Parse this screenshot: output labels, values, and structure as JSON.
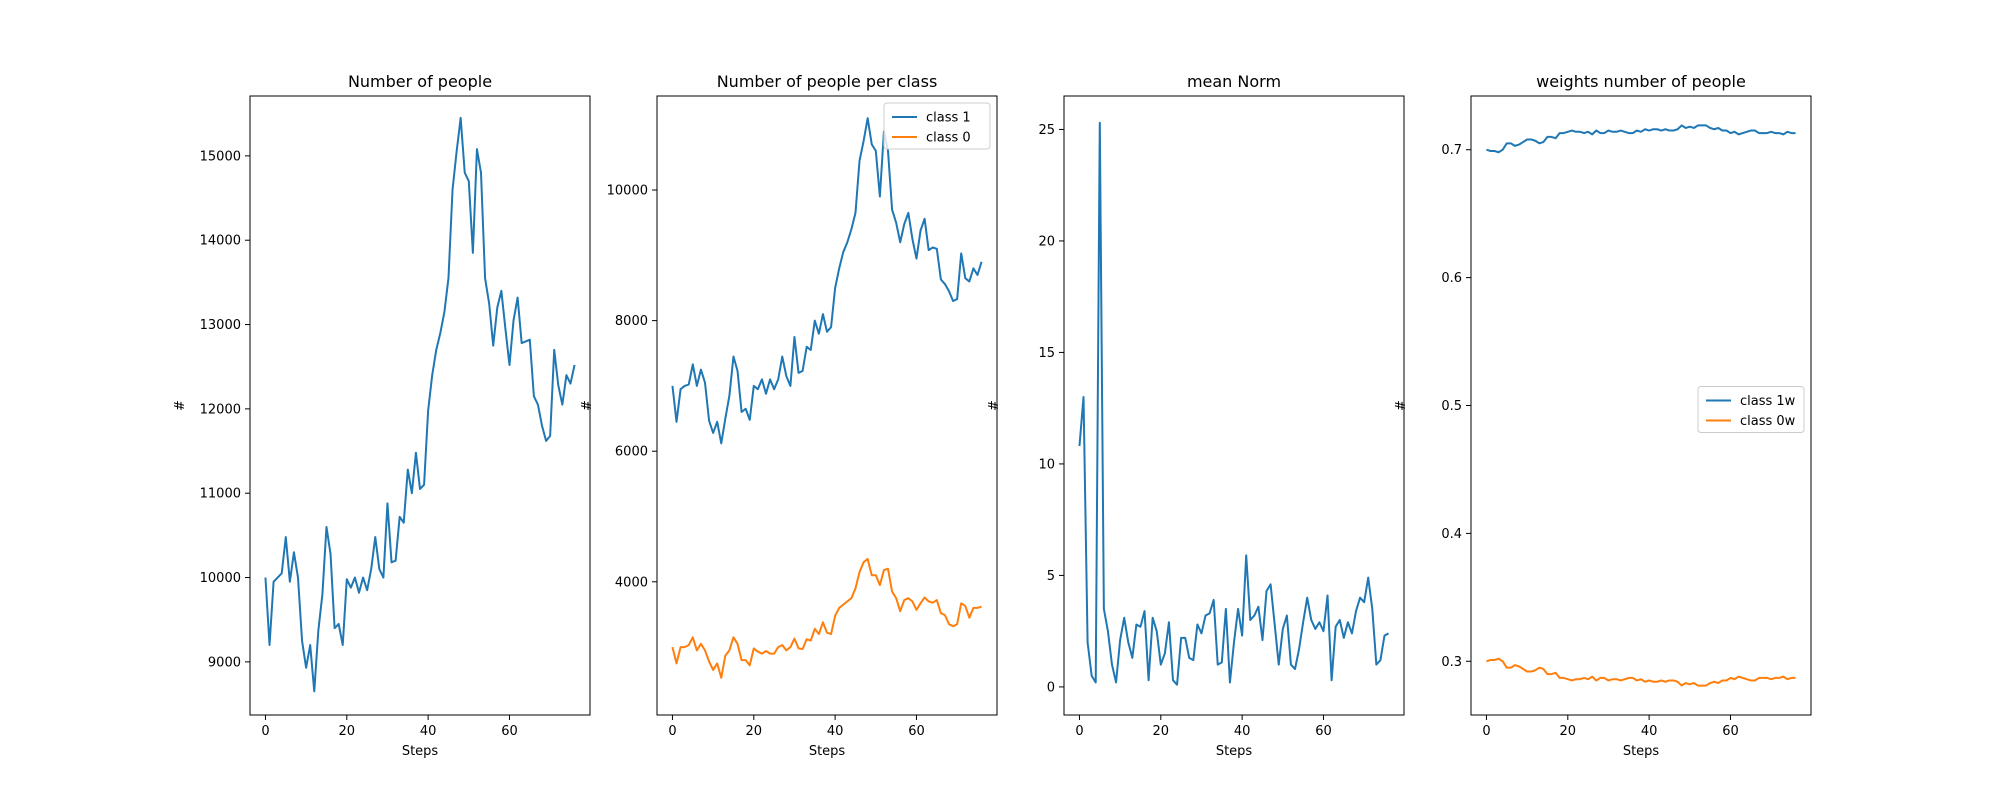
{
  "colors": {
    "series_0": "#1f77b4",
    "series_1": "#ff7f0e",
    "frame": "#000000"
  },
  "chart_data": [
    {
      "type": "line",
      "title": "Number of people",
      "xlabel": "Steps",
      "ylabel": "#",
      "xlim": [
        -3.8,
        79.8
      ],
      "ylim": [
        8370,
        15710
      ],
      "xticks": [
        0,
        20,
        40,
        60
      ],
      "yticks": [
        9000,
        10000,
        11000,
        12000,
        13000,
        14000,
        15000
      ],
      "legend": null,
      "series": [
        {
          "name": "",
          "color": "#1f77b4",
          "x": [
            0,
            1,
            2,
            3,
            4,
            5,
            6,
            7,
            8,
            9,
            10,
            11,
            12,
            13,
            14,
            15,
            16,
            17,
            18,
            19,
            20,
            21,
            22,
            23,
            24,
            25,
            26,
            27,
            28,
            29,
            30,
            31,
            32,
            33,
            34,
            35,
            36,
            37,
            38,
            39,
            40,
            41,
            42,
            43,
            44,
            45,
            46,
            47,
            48,
            49,
            50,
            51,
            52,
            53,
            54,
            55,
            56,
            57,
            58,
            59,
            60,
            61,
            62,
            63,
            64,
            65,
            66,
            67,
            68,
            69,
            70,
            71,
            72,
            73,
            74,
            75,
            76
          ],
          "values": [
            10000,
            9200,
            9950,
            10000,
            10050,
            10480,
            9950,
            10300,
            10000,
            9250,
            8930,
            9200,
            8650,
            9370,
            9800,
            10600,
            10280,
            9400,
            9450,
            9200,
            9980,
            9880,
            10000,
            9820,
            10000,
            9850,
            10100,
            10480,
            10100,
            10000,
            10880,
            10180,
            10200,
            10720,
            10650,
            11280,
            11000,
            11480,
            11050,
            11100,
            11980,
            12400,
            12700,
            12900,
            13150,
            13550,
            14600,
            15050,
            15450,
            14800,
            14700,
            13850,
            15080,
            14800,
            13550,
            13250,
            12750,
            13200,
            13400,
            12950,
            12520,
            13050,
            13320,
            12780,
            12800,
            12820,
            12150,
            12050,
            11800,
            11620,
            11680,
            12700,
            12280,
            12050,
            12400,
            12300,
            12520
          ]
        }
      ]
    },
    {
      "type": "line",
      "title": "Number of people per class",
      "xlabel": "Steps",
      "ylabel": "#",
      "xlim": [
        -3.8,
        79.8
      ],
      "ylim": [
        1960,
        11440
      ],
      "xticks": [
        0,
        20,
        40,
        60
      ],
      "yticks": [
        4000,
        6000,
        8000,
        10000
      ],
      "legend": "upper right",
      "series": [
        {
          "name": "class 1",
          "color": "#1f77b4",
          "x": [
            0,
            1,
            2,
            3,
            4,
            5,
            6,
            7,
            8,
            9,
            10,
            11,
            12,
            13,
            14,
            15,
            16,
            17,
            18,
            19,
            20,
            21,
            22,
            23,
            24,
            25,
            26,
            27,
            28,
            29,
            30,
            31,
            32,
            33,
            34,
            35,
            36,
            37,
            38,
            39,
            40,
            41,
            42,
            43,
            44,
            45,
            46,
            47,
            48,
            49,
            50,
            51,
            52,
            53,
            54,
            55,
            56,
            57,
            58,
            59,
            60,
            61,
            62,
            63,
            64,
            65,
            66,
            67,
            68,
            69,
            70,
            71,
            72,
            73,
            74,
            75,
            76
          ],
          "values": [
            7000,
            6450,
            6950,
            7000,
            7020,
            7330,
            7000,
            7250,
            7050,
            6470,
            6280,
            6450,
            6120,
            6500,
            6850,
            7450,
            7230,
            6600,
            6650,
            6480,
            7000,
            6950,
            7100,
            6880,
            7100,
            6950,
            7100,
            7450,
            7150,
            7000,
            7750,
            7200,
            7230,
            7600,
            7550,
            8000,
            7800,
            8100,
            7830,
            7900,
            8500,
            8800,
            9050,
            9200,
            9400,
            9650,
            10450,
            10750,
            11100,
            10700,
            10600,
            9900,
            10900,
            10600,
            9700,
            9500,
            9200,
            9480,
            9650,
            9250,
            8950,
            9380,
            9560,
            9080,
            9120,
            9100,
            8630,
            8560,
            8450,
            8300,
            8330,
            9030,
            8650,
            8600,
            8800,
            8700,
            8900
          ]
        },
        {
          "name": "class 0",
          "color": "#ff7f0e",
          "x": [
            0,
            1,
            2,
            3,
            4,
            5,
            6,
            7,
            8,
            9,
            10,
            11,
            12,
            13,
            14,
            15,
            16,
            17,
            18,
            19,
            20,
            21,
            22,
            23,
            24,
            25,
            26,
            27,
            28,
            29,
            30,
            31,
            32,
            33,
            34,
            35,
            36,
            37,
            38,
            39,
            40,
            41,
            42,
            43,
            44,
            45,
            46,
            47,
            48,
            49,
            50,
            51,
            52,
            53,
            54,
            55,
            56,
            57,
            58,
            59,
            60,
            61,
            62,
            63,
            64,
            65,
            66,
            67,
            68,
            69,
            70,
            71,
            72,
            73,
            74,
            75,
            76
          ],
          "values": [
            3000,
            2750,
            3000,
            3000,
            3030,
            3150,
            2950,
            3050,
            2950,
            2780,
            2650,
            2750,
            2530,
            2870,
            2950,
            3150,
            3050,
            2800,
            2800,
            2720,
            2980,
            2930,
            2900,
            2940,
            2900,
            2900,
            3000,
            3030,
            2950,
            3000,
            3130,
            2980,
            2970,
            3120,
            3100,
            3280,
            3200,
            3380,
            3220,
            3200,
            3480,
            3600,
            3650,
            3700,
            3750,
            3900,
            4150,
            4300,
            4350,
            4100,
            4100,
            3950,
            4180,
            4200,
            3850,
            3750,
            3550,
            3720,
            3750,
            3700,
            3570,
            3670,
            3760,
            3700,
            3680,
            3720,
            3520,
            3490,
            3350,
            3320,
            3350,
            3670,
            3630,
            3450,
            3600,
            3600,
            3620
          ]
        }
      ]
    },
    {
      "type": "line",
      "title": "mean Norm",
      "xlabel": "Steps",
      "ylabel": "#",
      "xlim": [
        -3.8,
        79.8
      ],
      "ylim": [
        -1.26,
        26.5
      ],
      "xticks": [
        0,
        20,
        40,
        60
      ],
      "yticks": [
        0,
        5,
        10,
        15,
        20,
        25
      ],
      "legend": null,
      "series": [
        {
          "name": "",
          "color": "#1f77b4",
          "x": [
            0,
            1,
            2,
            3,
            4,
            5,
            6,
            7,
            8,
            9,
            10,
            11,
            12,
            13,
            14,
            15,
            16,
            17,
            18,
            19,
            20,
            21,
            22,
            23,
            24,
            25,
            26,
            27,
            28,
            29,
            30,
            31,
            32,
            33,
            34,
            35,
            36,
            37,
            38,
            39,
            40,
            41,
            42,
            43,
            44,
            45,
            46,
            47,
            48,
            49,
            50,
            51,
            52,
            53,
            54,
            55,
            56,
            57,
            58,
            59,
            60,
            61,
            62,
            63,
            64,
            65,
            66,
            67,
            68,
            69,
            70,
            71,
            72,
            73,
            74,
            75,
            76
          ],
          "values": [
            10.8,
            13.0,
            2.0,
            0.5,
            0.2,
            25.3,
            3.5,
            2.5,
            1.0,
            0.2,
            2.1,
            3.1,
            2.0,
            1.3,
            2.8,
            2.7,
            3.4,
            0.3,
            3.1,
            2.5,
            1.0,
            1.5,
            2.9,
            0.3,
            0.1,
            2.2,
            2.2,
            1.3,
            1.2,
            2.8,
            2.4,
            3.2,
            3.3,
            3.9,
            1.0,
            1.1,
            3.5,
            0.2,
            2.0,
            3.5,
            2.3,
            5.9,
            3.0,
            3.2,
            3.6,
            2.1,
            4.3,
            4.6,
            2.8,
            1.0,
            2.6,
            3.2,
            1.0,
            0.8,
            1.7,
            2.9,
            4.0,
            3.0,
            2.6,
            2.9,
            2.5,
            4.1,
            0.3,
            2.7,
            3.0,
            2.2,
            2.9,
            2.4,
            3.4,
            4.0,
            3.8,
            4.9,
            3.5,
            1.0,
            1.2,
            2.3,
            2.4
          ]
        }
      ]
    },
    {
      "type": "line",
      "title": "weights number of people",
      "xlabel": "Steps",
      "ylabel": "#",
      "xlim": [
        -3.8,
        79.8
      ],
      "ylim": [
        0.258,
        0.742
      ],
      "xticks": [
        0,
        20,
        40,
        60
      ],
      "yticks": [
        0.3,
        0.4,
        0.5,
        0.6,
        0.7
      ],
      "legend": "center right",
      "series": [
        {
          "name": "class 1w",
          "color": "#1f77b4",
          "x": [
            0,
            1,
            2,
            3,
            4,
            5,
            6,
            7,
            8,
            9,
            10,
            11,
            12,
            13,
            14,
            15,
            16,
            17,
            18,
            19,
            20,
            21,
            22,
            23,
            24,
            25,
            26,
            27,
            28,
            29,
            30,
            31,
            32,
            33,
            34,
            35,
            36,
            37,
            38,
            39,
            40,
            41,
            42,
            43,
            44,
            45,
            46,
            47,
            48,
            49,
            50,
            51,
            52,
            53,
            54,
            55,
            56,
            57,
            58,
            59,
            60,
            61,
            62,
            63,
            64,
            65,
            66,
            67,
            68,
            69,
            70,
            71,
            72,
            73,
            74,
            75,
            76
          ],
          "values": [
            0.7,
            0.699,
            0.699,
            0.698,
            0.7,
            0.705,
            0.705,
            0.703,
            0.704,
            0.706,
            0.708,
            0.708,
            0.707,
            0.705,
            0.706,
            0.71,
            0.71,
            0.709,
            0.713,
            0.713,
            0.714,
            0.715,
            0.714,
            0.714,
            0.713,
            0.714,
            0.712,
            0.715,
            0.713,
            0.713,
            0.715,
            0.714,
            0.714,
            0.715,
            0.714,
            0.713,
            0.713,
            0.715,
            0.714,
            0.716,
            0.715,
            0.716,
            0.716,
            0.715,
            0.716,
            0.715,
            0.715,
            0.716,
            0.719,
            0.717,
            0.718,
            0.717,
            0.719,
            0.719,
            0.719,
            0.717,
            0.716,
            0.717,
            0.715,
            0.715,
            0.713,
            0.714,
            0.712,
            0.713,
            0.714,
            0.715,
            0.715,
            0.713,
            0.713,
            0.713,
            0.714,
            0.713,
            0.713,
            0.712,
            0.714,
            0.713,
            0.713
          ]
        },
        {
          "name": "class 0w",
          "color": "#ff7f0e",
          "x": [
            0,
            1,
            2,
            3,
            4,
            5,
            6,
            7,
            8,
            9,
            10,
            11,
            12,
            13,
            14,
            15,
            16,
            17,
            18,
            19,
            20,
            21,
            22,
            23,
            24,
            25,
            26,
            27,
            28,
            29,
            30,
            31,
            32,
            33,
            34,
            35,
            36,
            37,
            38,
            39,
            40,
            41,
            42,
            43,
            44,
            45,
            46,
            47,
            48,
            49,
            50,
            51,
            52,
            53,
            54,
            55,
            56,
            57,
            58,
            59,
            60,
            61,
            62,
            63,
            64,
            65,
            66,
            67,
            68,
            69,
            70,
            71,
            72,
            73,
            74,
            75,
            76
          ],
          "values": [
            0.3,
            0.301,
            0.301,
            0.302,
            0.3,
            0.295,
            0.295,
            0.297,
            0.296,
            0.294,
            0.292,
            0.292,
            0.293,
            0.295,
            0.294,
            0.29,
            0.29,
            0.291,
            0.287,
            0.287,
            0.286,
            0.285,
            0.286,
            0.286,
            0.287,
            0.286,
            0.288,
            0.285,
            0.287,
            0.287,
            0.285,
            0.286,
            0.286,
            0.285,
            0.286,
            0.287,
            0.287,
            0.285,
            0.286,
            0.284,
            0.285,
            0.284,
            0.284,
            0.285,
            0.284,
            0.285,
            0.285,
            0.284,
            0.281,
            0.283,
            0.282,
            0.283,
            0.281,
            0.281,
            0.281,
            0.283,
            0.284,
            0.283,
            0.285,
            0.285,
            0.287,
            0.286,
            0.288,
            0.287,
            0.286,
            0.285,
            0.285,
            0.287,
            0.287,
            0.287,
            0.286,
            0.287,
            0.287,
            0.288,
            0.286,
            0.287,
            0.287
          ]
        }
      ]
    }
  ]
}
